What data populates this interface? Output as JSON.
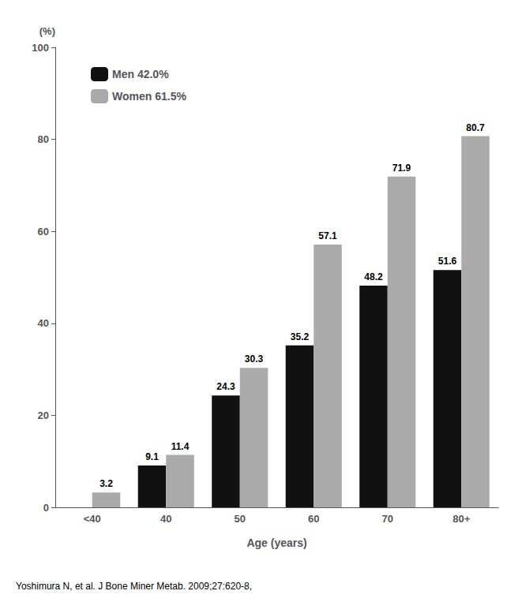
{
  "chart_data": {
    "type": "bar",
    "categories": [
      "<40",
      "40",
      "50",
      "60",
      "70",
      "80+"
    ],
    "series": [
      {
        "name": "Men 42.0%",
        "color": "#111111",
        "values": [
          0,
          9.1,
          24.3,
          35.2,
          48.2,
          51.6
        ],
        "value_labels": [
          null,
          "9.1",
          "24.3",
          "35.2",
          "48.2",
          "51.6"
        ]
      },
      {
        "name": "Women 61.5%",
        "color": "#aaaaaa",
        "values": [
          3.2,
          11.4,
          30.3,
          57.1,
          71.9,
          80.7
        ]
      }
    ],
    "xlabel": "Age (years)",
    "ylabel": "(%)",
    "ylim": [
      0,
      100
    ],
    "yticks": [
      0,
      20,
      40,
      60,
      80,
      100
    ],
    "grid": false,
    "legend": "upper left",
    "data_labels": true,
    "annotations": [
      "Yoshimura N, et al. J Bone Miner Metab. 2009;27:620-8,"
    ]
  }
}
